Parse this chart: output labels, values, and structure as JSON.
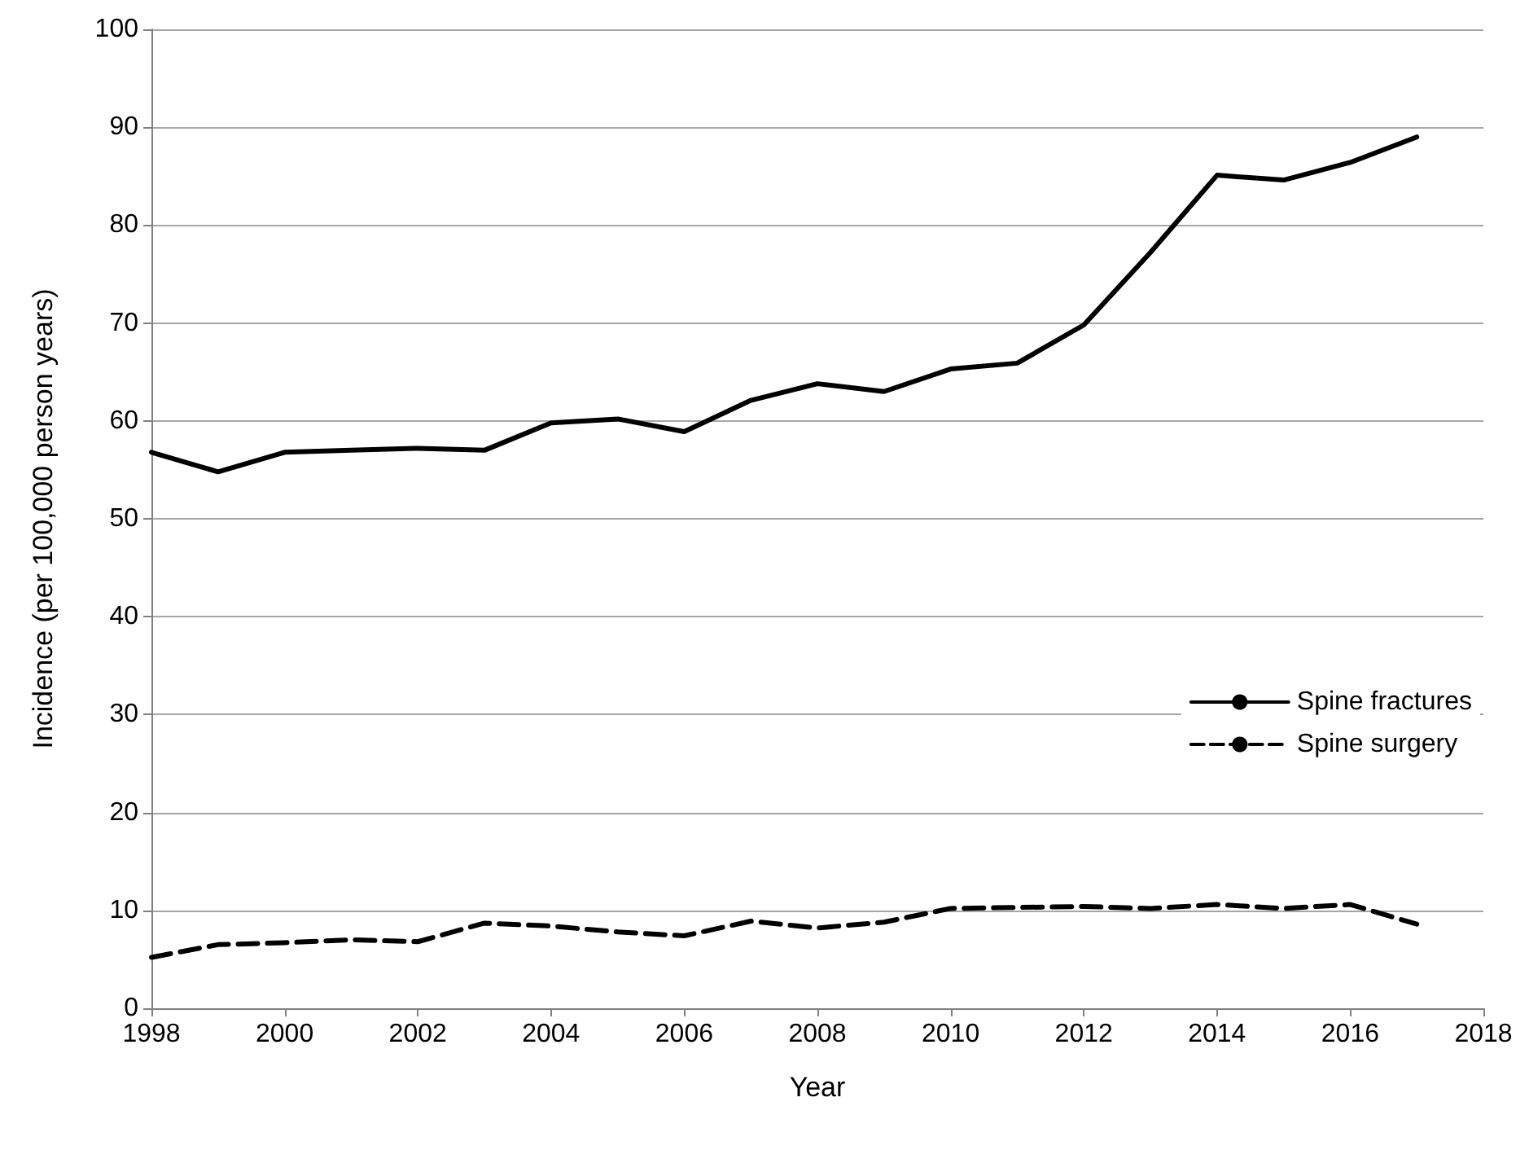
{
  "chart_data": {
    "type": "line",
    "xlabel": "Year",
    "ylabel": "Incidence (per 100,000 person years)",
    "x": [
      1998,
      1999,
      2000,
      2001,
      2002,
      2003,
      2004,
      2005,
      2006,
      2007,
      2008,
      2009,
      2010,
      2011,
      2012,
      2013,
      2014,
      2015,
      2016,
      2017
    ],
    "series": [
      {
        "name": "Spine fractures",
        "color": "#000000",
        "line_style": "solid",
        "values": [
          56.8,
          54.8,
          56.8,
          57.0,
          57.2,
          57.0,
          59.8,
          60.2,
          58.9,
          62.1,
          63.8,
          63.0,
          65.3,
          65.9,
          69.8,
          77.2,
          85.1,
          84.6,
          86.4,
          89.0
        ]
      },
      {
        "name": "Spine surgery",
        "color": "#000000",
        "line_style": "dashed",
        "values": [
          5.2,
          6.5,
          6.7,
          7.0,
          6.8,
          8.7,
          8.4,
          7.8,
          7.4,
          8.9,
          8.2,
          8.8,
          10.2,
          10.3,
          10.4,
          10.2,
          10.6,
          10.2,
          10.6,
          8.6
        ]
      }
    ],
    "xlim": [
      1998,
      2018
    ],
    "xticks": [
      1998,
      2000,
      2002,
      2004,
      2006,
      2008,
      2010,
      2012,
      2014,
      2016,
      2018
    ],
    "ylim": [
      0,
      100
    ],
    "yticks": [
      0,
      10,
      20,
      30,
      40,
      50,
      60,
      70,
      80,
      90,
      100
    ],
    "grid": "y",
    "legend": "right",
    "marker": "none"
  }
}
